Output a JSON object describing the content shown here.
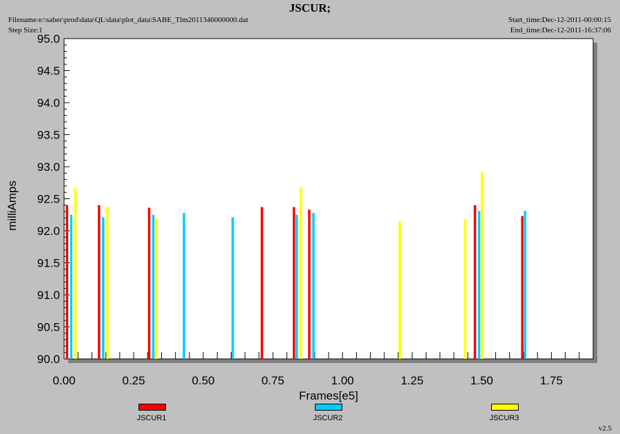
{
  "header": {
    "title": "JSCUR;",
    "filename": "Filename:e:\\saber\\prod\\data\\QL\\data\\plot_data\\SABE_Tlm2011346000000.dat",
    "step_size": "Step Size:1",
    "start_time": "Start_time:Dec-12-2011-00:00:15",
    "end_time": "End_time:Dec-12-2011-16:37:06"
  },
  "version": "v2.5",
  "colors": {
    "JSCUR1": "#ff0000",
    "JSCUR2": "#00ccff",
    "JSCUR3": "#ffff00",
    "plot_bg": "#ffffff",
    "page_bg": "#c0c0c0"
  },
  "chart_data": {
    "type": "bar",
    "title": "JSCUR;",
    "xlabel": "Frames[e5]",
    "ylabel": "milliAmps",
    "xlim": [
      0,
      1.9
    ],
    "ylim": [
      90.0,
      95.0
    ],
    "x_ticks": [
      "0.00",
      "0.25",
      "0.50",
      "0.75",
      "1.00",
      "1.25",
      "1.50",
      "1.75"
    ],
    "y_ticks": [
      "90.0",
      "90.5",
      "91.0",
      "91.5",
      "92.0",
      "92.5",
      "93.0",
      "93.5",
      "94.0",
      "94.5",
      "95.0"
    ],
    "grid": false,
    "legend_position": "bottom",
    "series": [
      {
        "name": "JSCUR1",
        "points": [
          [
            0.01,
            92.4
          ],
          [
            0.125,
            92.4
          ],
          [
            0.305,
            92.36
          ],
          [
            0.71,
            92.37
          ],
          [
            0.825,
            92.37
          ],
          [
            0.88,
            92.33
          ],
          [
            1.475,
            92.4
          ],
          [
            1.645,
            92.23
          ]
        ]
      },
      {
        "name": "JSCUR2",
        "points": [
          [
            0.025,
            92.25
          ],
          [
            0.14,
            92.21
          ],
          [
            0.32,
            92.25
          ],
          [
            0.43,
            92.28
          ],
          [
            0.605,
            92.21
          ],
          [
            0.835,
            92.25
          ],
          [
            0.895,
            92.28
          ],
          [
            1.49,
            92.31
          ],
          [
            1.655,
            92.31
          ]
        ]
      },
      {
        "name": "JSCUR3",
        "points": [
          [
            0.04,
            92.67
          ],
          [
            0.155,
            92.38
          ],
          [
            0.33,
            92.19
          ],
          [
            0.85,
            92.68
          ],
          [
            1.205,
            92.15
          ],
          [
            1.44,
            92.18
          ],
          [
            1.5,
            92.92
          ]
        ]
      }
    ]
  }
}
